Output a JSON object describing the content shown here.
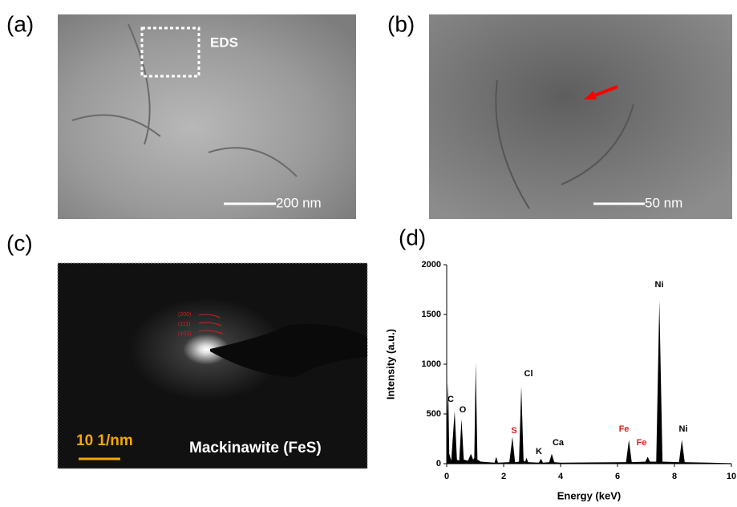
{
  "panels": {
    "a": {
      "label": "(a)",
      "box_label": "EDS",
      "scale_bar": "200 nm"
    },
    "b": {
      "label": "(b)",
      "scale_bar": "50 nm"
    },
    "c": {
      "label": "(c)",
      "rings": [
        "(200)",
        "(111)",
        "(101)"
      ],
      "scale_bar": "10 1/nm",
      "phase": "Mackinawite (FeS)"
    }
  },
  "chart_data": {
    "type": "area",
    "label": "(d)",
    "x_label": "Energy (keV)",
    "y_label": "Intensity (a.u.)",
    "color": "#000000",
    "x": [
      0,
      0.02,
      0.05,
      0.09,
      0.16,
      0.28,
      0.36,
      0.44,
      0.52,
      0.6,
      0.75,
      0.85,
      0.93,
      0.97,
      1.02,
      1.08,
      1.2,
      1.68,
      1.74,
      1.8,
      2.2,
      2.31,
      2.4,
      2.54,
      2.62,
      2.7,
      2.76,
      2.8,
      2.86,
      3.24,
      3.31,
      3.38,
      3.6,
      3.69,
      3.78,
      4.0,
      6.3,
      6.4,
      6.5,
      6.98,
      7.06,
      7.14,
      7.36,
      7.47,
      7.58,
      8.16,
      8.26,
      8.36,
      10
    ],
    "values": [
      0,
      500,
      820,
      100,
      30,
      530,
      40,
      30,
      450,
      40,
      30,
      100,
      40,
      60,
      1020,
      40,
      20,
      10,
      70,
      10,
      15,
      270,
      15,
      20,
      780,
      30,
      20,
      60,
      15,
      10,
      50,
      10,
      15,
      100,
      15,
      10,
      15,
      240,
      15,
      20,
      70,
      20,
      20,
      1640,
      20,
      15,
      240,
      15,
      5
    ],
    "xlim": [
      0,
      10
    ],
    "xticks": [
      0,
      2,
      4,
      6,
      8,
      10
    ],
    "ylim": [
      0,
      2000
    ],
    "yticks": [
      0,
      500,
      1000,
      1500,
      2000
    ],
    "peak_labels": [
      {
        "text": "C",
        "color": "#000000"
      },
      {
        "text": "O",
        "color": "#000000"
      },
      {
        "text": "S",
        "color": "#e0201b"
      },
      {
        "text": "Cl",
        "color": "#000000"
      },
      {
        "text": "K",
        "color": "#000000"
      },
      {
        "text": "Ca",
        "color": "#000000"
      },
      {
        "text": "Fe",
        "color": "#e0201b"
      },
      {
        "text": "Fe",
        "color": "#e0201b"
      },
      {
        "text": "Ni",
        "color": "#000000"
      },
      {
        "text": "Ni",
        "color": "#000000"
      }
    ]
  }
}
